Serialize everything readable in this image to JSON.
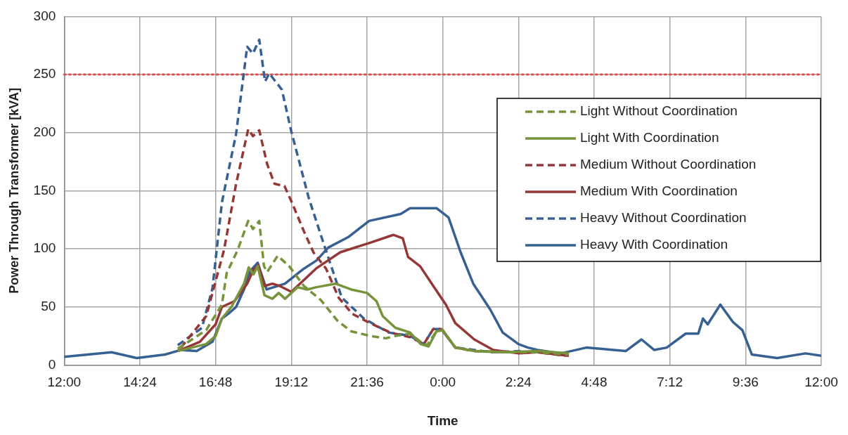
{
  "chart_data": {
    "type": "line",
    "xlabel": "Time",
    "ylabel": "Power Through Transformer [kVA]",
    "xlim": [
      "--01-01T12:00",
      "--01-02T12:00"
    ],
    "xticks": [
      {
        "value": "--01-01T12:00",
        "label": "12:00"
      },
      {
        "value": "--01-01T14:24",
        "label": "14:24"
      },
      {
        "value": "--01-01T16:48",
        "label": "16:48"
      },
      {
        "value": "--01-01T19:12",
        "label": "19:12"
      },
      {
        "value": "--01-01T21:36",
        "label": "21:36"
      },
      {
        "value": "--01-02T00:00",
        "label": "0:00"
      },
      {
        "value": "--01-02T02:24",
        "label": "2:24"
      },
      {
        "value": "--01-02T04:48",
        "label": "4:48"
      },
      {
        "value": "--01-02T07:12",
        "label": "7:12"
      },
      {
        "value": "--01-02T09:36",
        "label": "9:36"
      },
      {
        "value": "--01-02T12:00",
        "label": "12:00"
      }
    ],
    "ylim": [
      0,
      300
    ],
    "yticks": [
      0,
      50,
      100,
      150,
      200,
      250,
      300
    ],
    "grid": true,
    "legend": "right",
    "marker": "none",
    "ref_lines": [
      {
        "axis": "y",
        "value": 250,
        "color": "#d9534f",
        "line_style": "dotted"
      }
    ],
    "series": [
      {
        "name": "Light Without Coordination",
        "color": "#77933c",
        "line_style": "dashed",
        "x": [
          "--01-01T15:36",
          "--01-01T16:30",
          "--01-01T17:00",
          "--01-01T17:09",
          "--01-01T17:30",
          "--01-01T17:50",
          "--01-01T17:59",
          "--01-01T18:11",
          "--01-01T18:20",
          "--01-01T18:26",
          "--01-01T18:46",
          "--01-01T19:08",
          "--01-01T19:36",
          "--01-01T20:08",
          "--01-01T20:40",
          "--01-01T21:06",
          "--01-01T21:42",
          "--01-01T22:12",
          "--01-01T22:30",
          "--01-01T22:58",
          "--01-01T23:18",
          "--01-01T23:30",
          "--01-01T23:48",
          "--01-02T00:00",
          "--01-02T00:24",
          "--01-02T01:00",
          "--01-02T02:00",
          "--01-02T03:00",
          "--01-02T04:00"
        ],
        "values": [
          14,
          30,
          52,
          79,
          99,
          124,
          117,
          124,
          85,
          80,
          94,
          85,
          68,
          56,
          38,
          29,
          25,
          23,
          25,
          27,
          20,
          17,
          29,
          30,
          15,
          12,
          11,
          11,
          9
        ]
      },
      {
        "name": "Light With Coordination",
        "color": "#77933c",
        "line_style": "solid",
        "x": [
          "--01-01T15:36",
          "--01-01T16:30",
          "--01-01T16:48",
          "--01-01T17:00",
          "--01-01T17:18",
          "--01-01T17:42",
          "--01-01T17:51",
          "--01-01T18:00",
          "--01-01T18:08",
          "--01-01T18:21",
          "--01-01T18:36",
          "--01-01T18:48",
          "--01-01T19:00",
          "--01-01T19:12",
          "--01-01T19:24",
          "--01-01T19:42",
          "--01-01T20:00",
          "--01-01T20:36",
          "--01-01T21:06",
          "--01-01T21:36",
          "--01-01T21:54",
          "--01-01T22:06",
          "--01-01T22:30",
          "--01-01T22:58",
          "--01-01T23:18",
          "--01-01T23:33",
          "--01-01T23:48",
          "--01-02T00:00",
          "--01-02T00:24",
          "--01-02T01:00",
          "--01-02T02:00",
          "--01-02T03:00",
          "--01-02T04:00"
        ],
        "values": [
          12,
          18,
          25,
          40,
          50,
          70,
          84,
          78,
          85,
          60,
          57,
          62,
          57,
          62,
          67,
          65,
          67,
          70,
          65,
          62,
          55,
          42,
          32,
          28,
          18,
          16,
          29,
          30,
          15,
          12,
          11,
          12,
          10
        ]
      },
      {
        "name": "Medium Without Coordination",
        "color": "#953735",
        "line_style": "dashed",
        "x": [
          "--01-01T15:42",
          "--01-01T16:30",
          "--01-01T17:04",
          "--01-01T17:27",
          "--01-01T17:50",
          "--01-01T17:59",
          "--01-01T18:11",
          "--01-01T18:26",
          "--01-01T18:40",
          "--01-01T18:59",
          "--01-01T19:13",
          "--01-01T19:36",
          "--01-01T19:54",
          "--01-01T20:18",
          "--01-01T20:42",
          "--01-01T21:08",
          "--01-01T21:42",
          "--01-01T22:20",
          "--01-01T22:58",
          "--01-01T23:24",
          "--01-01T23:42",
          "--01-01T23:57",
          "--01-02T00:24",
          "--01-02T01:00",
          "--01-02T02:00",
          "--01-02T03:00",
          "--01-02T03:54"
        ],
        "values": [
          15,
          42,
          99,
          156,
          203,
          197,
          202,
          173,
          156,
          154,
          140,
          115,
          97,
          83,
          58,
          44,
          36,
          28,
          24,
          18,
          31,
          31,
          15,
          12,
          11,
          11,
          8
        ]
      },
      {
        "name": "Medium With Coordination",
        "color": "#953735",
        "line_style": "solid",
        "x": [
          "--01-01T15:36",
          "--01-01T16:18",
          "--01-01T16:48",
          "--01-01T17:00",
          "--01-01T17:24",
          "--01-01T17:48",
          "--01-01T18:00",
          "--01-01T18:09",
          "--01-01T18:21",
          "--01-01T18:36",
          "--01-01T18:50",
          "--01-01T19:12",
          "--01-01T19:59",
          "--01-01T20:45",
          "--01-01T21:40",
          "--01-01T22:26",
          "--01-01T22:44",
          "--01-01T22:54",
          "--01-01T23:17",
          "--01-01T23:45",
          "--01-02T00:06",
          "--01-02T00:24",
          "--01-02T01:00",
          "--01-02T01:36",
          "--01-02T02:24",
          "--01-02T03:00",
          "--01-02T04:00"
        ],
        "values": [
          12,
          20,
          35,
          50,
          55,
          70,
          82,
          86,
          68,
          70,
          68,
          63,
          83,
          97,
          105,
          112,
          109,
          93,
          85,
          66,
          52,
          36,
          22,
          13,
          10,
          11,
          8
        ]
      },
      {
        "name": "Heavy Without Coordination",
        "color": "#376092",
        "line_style": "dashed",
        "x": [
          "--01-01T15:36",
          "--01-01T16:22",
          "--01-01T16:42",
          "--01-01T17:00",
          "--01-01T17:27",
          "--01-01T17:48",
          "--01-01T17:59",
          "--01-01T18:11",
          "--01-01T18:22",
          "--01-01T18:30",
          "--01-01T18:54",
          "--01-01T19:12",
          "--01-01T19:45",
          "--01-01T20:16",
          "--01-01T20:48",
          "--01-01T21:30",
          "--01-01T22:17",
          "--01-01T22:58",
          "--01-01T23:24",
          "--01-01T23:42",
          "--01-01T23:57",
          "--01-02T00:24",
          "--01-02T01:00",
          "--01-02T01:30",
          "--01-02T02:30"
        ],
        "values": [
          17,
          32,
          66,
          140,
          199,
          274,
          268,
          280,
          244,
          251,
          237,
          201,
          144,
          101,
          58,
          40,
          28,
          25,
          18,
          31,
          31,
          15,
          13,
          11,
          12
        ]
      },
      {
        "name": "Heavy With Coordination",
        "color": "#376092",
        "line_style": "solid",
        "x": [
          "--01-01T12:00",
          "--01-01T13:30",
          "--01-01T14:18",
          "--01-01T15:12",
          "--01-01T15:42",
          "--01-01T16:12",
          "--01-01T16:42",
          "--01-01T17:00",
          "--01-01T17:12",
          "--01-01T17:27",
          "--01-01T17:42",
          "--01-01T17:54",
          "--01-01T18:08",
          "--01-01T18:25",
          "--01-01T19:00",
          "--01-01T19:36",
          "--01-01T20:00",
          "--01-01T20:22",
          "--01-01T21:00",
          "--01-01T21:40",
          "--01-01T22:40",
          "--01-01T22:58",
          "--01-01T23:48",
          "--01-02T00:11",
          "--01-02T00:34",
          "--01-02T00:58",
          "--01-02T01:30",
          "--01-02T01:54",
          "--01-02T02:24",
          "--01-02T02:42",
          "--01-02T03:00",
          "--01-02T03:45",
          "--01-02T04:33",
          "--01-02T05:48",
          "--01-02T06:18",
          "--01-02T06:42",
          "--01-02T07:06",
          "--01-02T07:42",
          "--01-02T08:06",
          "--01-02T08:15",
          "--01-02T08:24",
          "--01-02T08:48",
          "--01-02T09:12",
          "--01-02T09:30",
          "--01-02T09:48",
          "--01-02T10:36",
          "--01-02T11:30",
          "--01-02T12:00"
        ],
        "values": [
          7,
          11,
          6,
          9,
          13,
          12,
          20,
          40,
          44,
          50,
          65,
          81,
          88,
          65,
          70,
          83,
          90,
          101,
          110,
          124,
          130,
          135,
          135,
          127,
          97,
          70,
          48,
          28,
          18,
          15,
          13,
          10,
          15,
          12,
          22,
          13,
          15,
          27,
          27,
          40,
          35,
          52,
          37,
          30,
          9,
          6,
          10,
          8
        ]
      }
    ]
  }
}
